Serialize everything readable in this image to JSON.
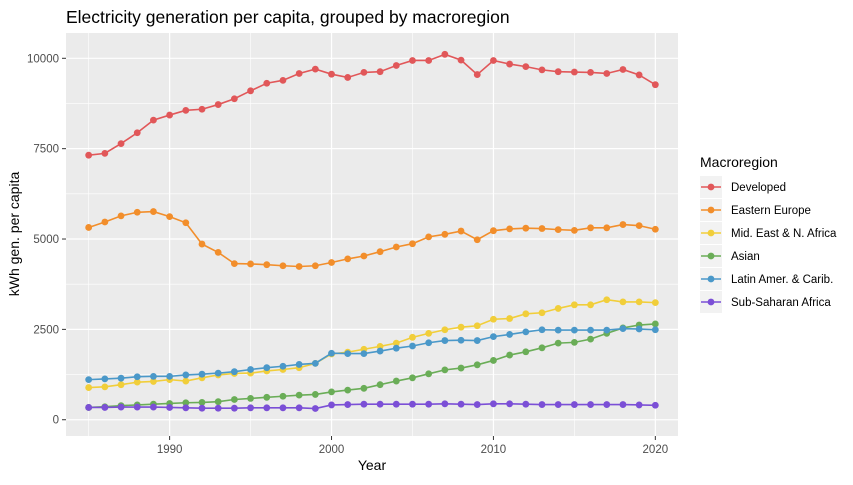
{
  "chart_data": {
    "type": "line",
    "title": "Electricity generation per capita, grouped by macroregion",
    "xlabel": "Year",
    "ylabel": "kWh gen. per capita",
    "xlim": [
      1983.6,
      2021.4
    ],
    "ylim": [
      -450,
      10700
    ],
    "x_ticks": [
      1990,
      2000,
      2010,
      2020
    ],
    "y_ticks": [
      0,
      2500,
      5000,
      7500,
      10000
    ],
    "grid": true,
    "legend_title": "Macroregion",
    "legend_position": "right",
    "x": [
      1985,
      1986,
      1987,
      1988,
      1989,
      1990,
      1991,
      1992,
      1993,
      1994,
      1995,
      1996,
      1997,
      1998,
      1999,
      2000,
      2001,
      2002,
      2003,
      2004,
      2005,
      2006,
      2007,
      2008,
      2009,
      2010,
      2011,
      2012,
      2013,
      2014,
      2015,
      2016,
      2017,
      2018,
      2019,
      2020
    ],
    "series": [
      {
        "name": "Developed",
        "color": "#e15759",
        "values": [
          7320,
          7370,
          7640,
          7940,
          8290,
          8430,
          8560,
          8590,
          8720,
          8880,
          9100,
          9310,
          9390,
          9580,
          9700,
          9560,
          9470,
          9610,
          9630,
          9800,
          9940,
          9940,
          10110,
          9950,
          9550,
          9940,
          9840,
          9770,
          9680,
          9630,
          9620,
          9610,
          9580,
          9690,
          9540,
          9270
        ]
      },
      {
        "name": "Eastern Europe",
        "color": "#f28e2b",
        "values": [
          5320,
          5470,
          5640,
          5740,
          5760,
          5620,
          5450,
          4860,
          4630,
          4320,
          4310,
          4290,
          4260,
          4240,
          4260,
          4350,
          4450,
          4530,
          4650,
          4780,
          4870,
          5060,
          5130,
          5220,
          4980,
          5230,
          5280,
          5300,
          5290,
          5260,
          5240,
          5310,
          5310,
          5400,
          5370,
          5270
        ]
      },
      {
        "name": "Mid. East & N. Africa",
        "color": "#f1ce3a",
        "values": [
          890,
          910,
          970,
          1040,
          1060,
          1110,
          1070,
          1160,
          1240,
          1280,
          1290,
          1350,
          1390,
          1440,
          1560,
          1820,
          1870,
          1950,
          2030,
          2120,
          2280,
          2390,
          2490,
          2560,
          2600,
          2780,
          2800,
          2930,
          2960,
          3080,
          3180,
          3180,
          3320,
          3260,
          3260,
          3240
        ]
      },
      {
        "name": "Asian",
        "color": "#6aad57",
        "values": [
          340,
          360,
          390,
          410,
          430,
          450,
          470,
          480,
          500,
          560,
          590,
          620,
          650,
          680,
          700,
          770,
          820,
          870,
          970,
          1070,
          1160,
          1270,
          1380,
          1430,
          1520,
          1640,
          1790,
          1880,
          1990,
          2120,
          2140,
          2230,
          2390,
          2540,
          2620,
          2650
        ]
      },
      {
        "name": "Latin Amer. & Carib.",
        "color": "#4a98c9",
        "values": [
          1110,
          1130,
          1150,
          1190,
          1200,
          1200,
          1240,
          1260,
          1290,
          1330,
          1390,
          1440,
          1480,
          1530,
          1560,
          1840,
          1830,
          1830,
          1900,
          1980,
          2040,
          2130,
          2190,
          2200,
          2190,
          2300,
          2360,
          2430,
          2490,
          2480,
          2480,
          2480,
          2480,
          2520,
          2510,
          2490
        ]
      },
      {
        "name": "Sub-Saharan Africa",
        "color": "#7b4fd6",
        "values": [
          340,
          340,
          350,
          350,
          350,
          340,
          330,
          320,
          320,
          320,
          330,
          330,
          330,
          330,
          310,
          410,
          420,
          430,
          430,
          430,
          430,
          430,
          440,
          430,
          420,
          440,
          440,
          430,
          420,
          420,
          420,
          420,
          420,
          420,
          410,
          400
        ]
      }
    ]
  }
}
